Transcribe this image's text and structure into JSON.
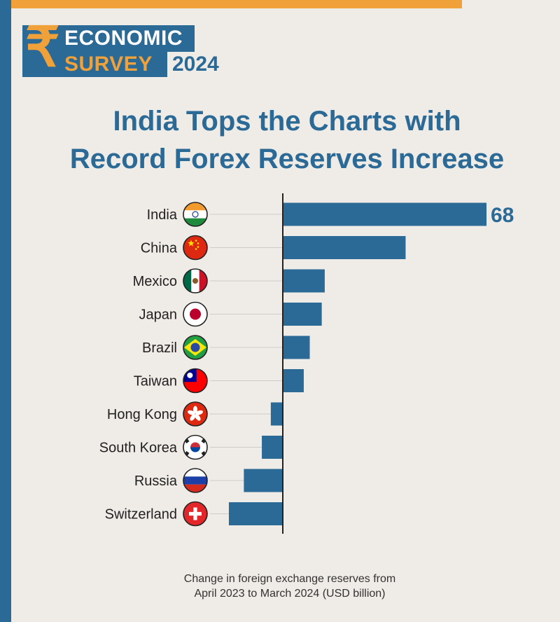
{
  "logo": {
    "symbol": "₹",
    "line1": "ECONOMIC",
    "line2": "SURVEY",
    "year": "2024"
  },
  "title": {
    "line1": "India Tops the Charts with",
    "line2": "Record Forex Reserves Increase"
  },
  "footnote": {
    "line1": "Change in foreign exchange reserves from",
    "line2": "April 2023 to March 2024 (USD billion)"
  },
  "colors": {
    "bar": "#2b6a96",
    "title": "#2b6a96",
    "accent": "#f0a13a",
    "background": "#efebe6"
  },
  "chart_data": {
    "type": "bar",
    "orientation": "horizontal",
    "categories": [
      "India",
      "China",
      "Mexico",
      "Japan",
      "Brazil",
      "Taiwan",
      "Hong Kong",
      "South Korea",
      "Russia",
      "Switzerland"
    ],
    "values": [
      68,
      41,
      14,
      13,
      9,
      7,
      -4,
      -7,
      -13,
      -18
    ],
    "data_labels": [
      "68",
      "",
      "",
      "",
      "",
      "",
      "",
      "",
      "",
      ""
    ],
    "flags": [
      "india-flag",
      "china-flag",
      "mexico-flag",
      "japan-flag",
      "brazil-flag",
      "taiwan-flag",
      "hong-kong-flag",
      "south-korea-flag",
      "russia-flag",
      "switzerland-flag"
    ],
    "xlim": [
      -20,
      70
    ],
    "grid": false,
    "legend": "none"
  }
}
